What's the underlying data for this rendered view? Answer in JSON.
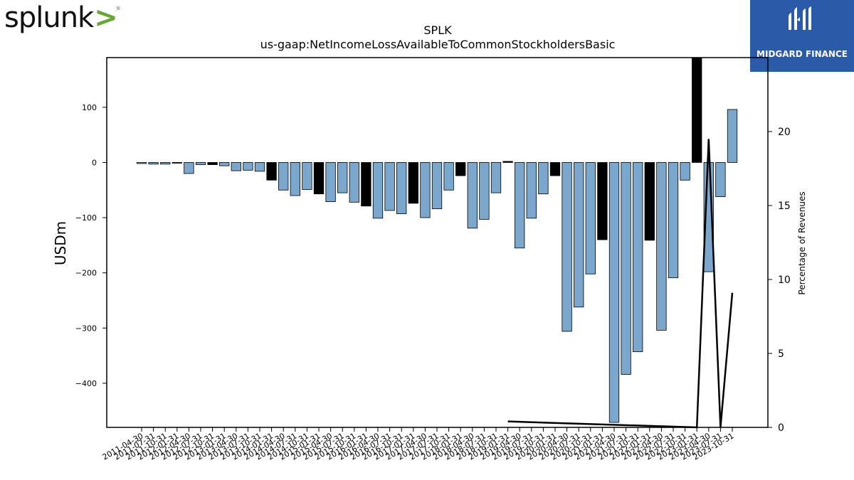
{
  "logo": {
    "text": "splunk",
    "chevron": ">",
    "registered": "®"
  },
  "brand": {
    "name": "MIDGARD FINANCE",
    "color": "#2b5aa8"
  },
  "chart_data": {
    "type": "bar",
    "title": "SPLK",
    "subtitle": "us-gaap:NetIncomeLossAvailableToCommonStockholdersBasic",
    "ylabel": "USDm",
    "y2label": "Percentage of Revenues",
    "ylim": [
      -480,
      190
    ],
    "y2lim": [
      0,
      25
    ],
    "yticks": [
      100,
      0,
      -100,
      -200,
      -300,
      -400
    ],
    "y2ticks": [
      0,
      5,
      10,
      15,
      20
    ],
    "colors": {
      "bar": "#7ba7cc",
      "highlight": "#000000",
      "line": "#000000"
    },
    "categories": [
      "2011-04-30",
      "2011-07-31",
      "2011-10-31",
      "2012-01-31",
      "2012-04-30",
      "2012-07-31",
      "2012-10-31",
      "2013-01-31",
      "2013-04-30",
      "2013-07-31",
      "2013-10-31",
      "2014-01-31",
      "2014-04-30",
      "2014-07-31",
      "2014-10-31",
      "2015-01-31",
      "2015-04-30",
      "2015-07-31",
      "2015-10-31",
      "2016-01-31",
      "2016-04-30",
      "2016-07-31",
      "2016-10-31",
      "2017-01-31",
      "2017-04-30",
      "2017-07-31",
      "2017-10-31",
      "2018-01-31",
      "2018-04-30",
      "2018-07-31",
      "2018-10-31",
      "2019-01-31",
      "2019-04-30",
      "2019-07-31",
      "2019-10-31",
      "2020-01-31",
      "2020-04-30",
      "2020-07-31",
      "2020-10-31",
      "2021-01-31",
      "2021-04-30",
      "2021-07-31",
      "2021-10-31",
      "2022-01-31",
      "2022-04-30",
      "2022-07-31",
      "2022-10-31",
      "2023-01-31",
      "2023-04-30",
      "2023-07-31",
      "2023-10-31"
    ],
    "values": [
      -2,
      -3,
      -3,
      -1,
      -20,
      -4,
      -4,
      -6,
      -15,
      -14,
      -16,
      -32,
      -50,
      -60,
      -49,
      -57,
      -71,
      -55,
      -72,
      -79,
      -101,
      -87,
      -93,
      -74,
      -100,
      -84,
      -50,
      -24,
      -119,
      -103,
      -55,
      2,
      -155,
      -101,
      -57,
      -24,
      -306,
      -262,
      -202,
      -140,
      -471,
      -384,
      -343,
      -141,
      -304,
      -209,
      -32,
      190,
      -198,
      -62,
      96
    ],
    "highlight": [
      false,
      false,
      false,
      true,
      false,
      false,
      true,
      false,
      false,
      false,
      false,
      true,
      false,
      false,
      false,
      true,
      false,
      false,
      false,
      true,
      false,
      false,
      false,
      true,
      false,
      false,
      false,
      true,
      false,
      false,
      false,
      true,
      false,
      false,
      false,
      true,
      false,
      false,
      false,
      true,
      false,
      false,
      false,
      true,
      false,
      false,
      false,
      true,
      false,
      false,
      false
    ],
    "line_series": {
      "name": "Percentage of Revenues",
      "points": [
        {
          "x": "2019-01-31",
          "y": 0.4
        },
        {
          "x": "2023-01-31",
          "y": 0
        },
        {
          "x": "2023-04-30",
          "y": 19.5
        },
        {
          "x": "2023-07-31",
          "y": 0
        },
        {
          "x": "2023-10-31",
          "y": 9.1
        }
      ]
    }
  }
}
